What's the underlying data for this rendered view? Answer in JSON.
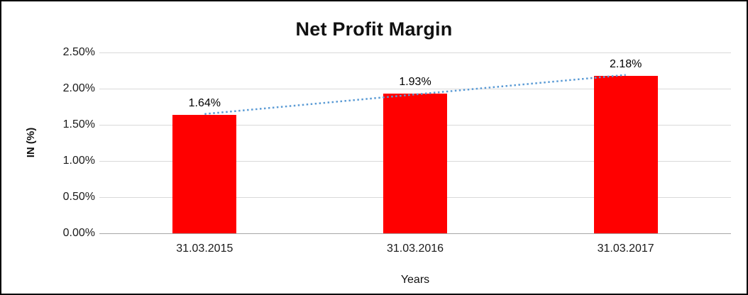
{
  "chart_data": {
    "type": "bar",
    "title": "Net Profit Margin",
    "xlabel": "Years",
    "ylabel": "IN (%)",
    "categories": [
      "31.03.2015",
      "31.03.2016",
      "31.03.2017"
    ],
    "values": [
      1.64,
      1.93,
      2.18
    ],
    "value_labels": [
      "1.64%",
      "1.93%",
      "2.18%"
    ],
    "ylim": [
      0,
      2.5
    ],
    "ytick_step": 0.5,
    "ytick_labels": [
      "0.00%",
      "0.50%",
      "1.00%",
      "1.50%",
      "2.00%",
      "2.50%"
    ],
    "grid": true,
    "legend": "none",
    "trendline": {
      "style": "dotted",
      "from_value": 1.64,
      "to_value": 2.18
    },
    "colors": {
      "bar": "#ff0000",
      "trendline": "#5b9bd5",
      "gridline": "#d9d9d9",
      "axis_line": "#a6a6a6",
      "text": "#000000",
      "border": "#000000",
      "background": "#ffffff"
    }
  }
}
